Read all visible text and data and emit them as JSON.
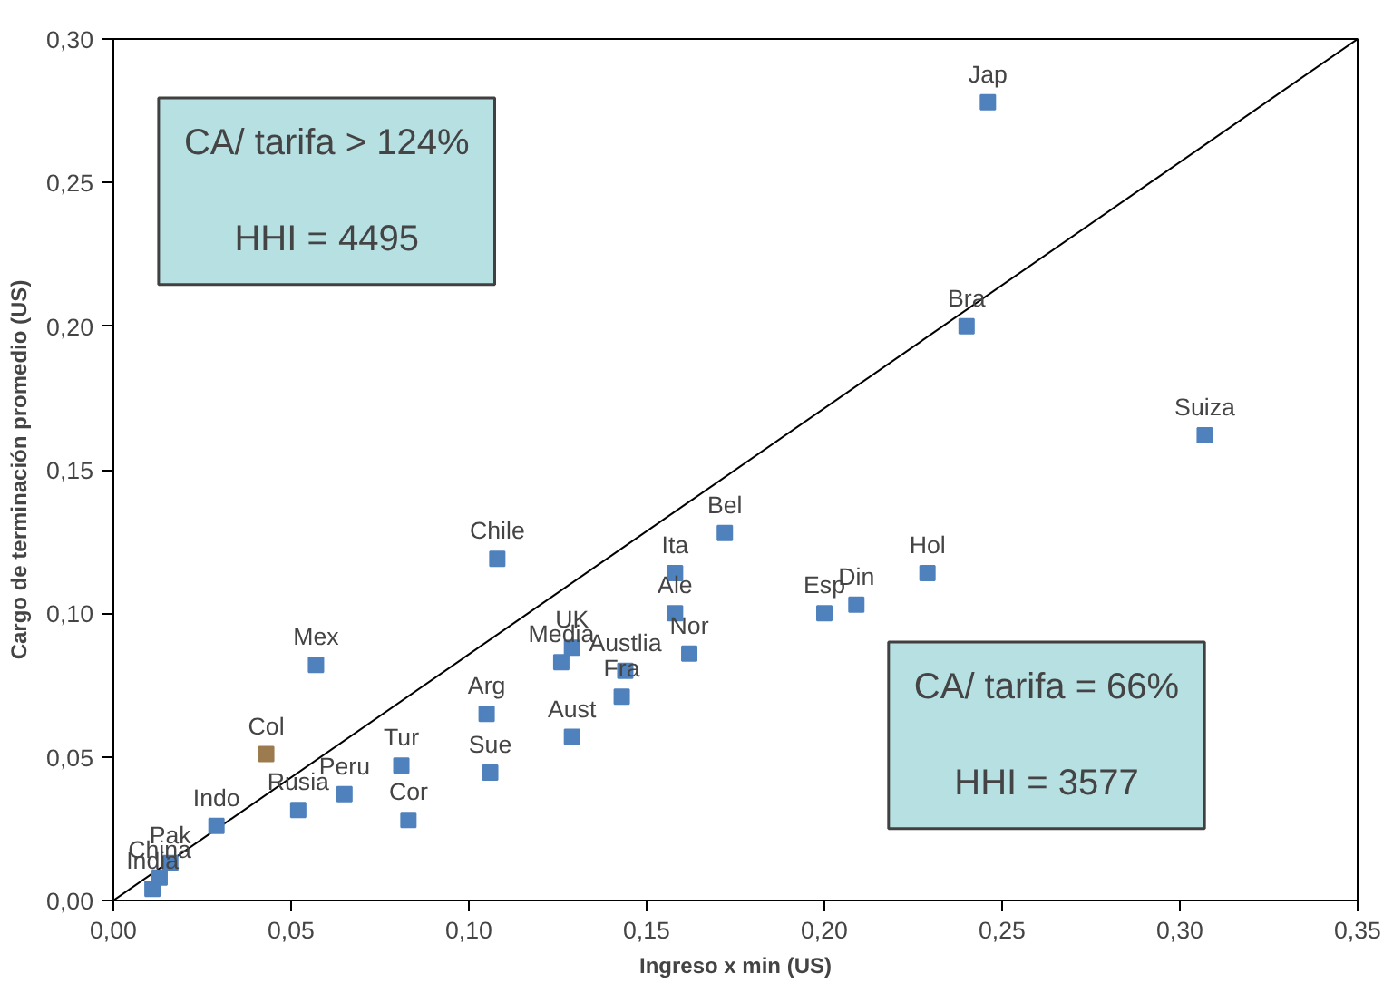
{
  "chart_data": {
    "type": "scatter",
    "xlabel": "Ingreso x min (US)",
    "ylabel": "Cargo de terminación promedio (US)",
    "xlim": [
      0,
      0.35
    ],
    "ylim": [
      0,
      0.3
    ],
    "xticks": [
      {
        "value": 0,
        "label": "0,00"
      },
      {
        "value": 0.05,
        "label": "0,05"
      },
      {
        "value": 0.1,
        "label": "0,10"
      },
      {
        "value": 0.15,
        "label": "0,15"
      },
      {
        "value": 0.2,
        "label": "0,20"
      },
      {
        "value": 0.25,
        "label": "0,25"
      },
      {
        "value": 0.3,
        "label": "0,30"
      },
      {
        "value": 0.35,
        "label": "0,35"
      }
    ],
    "yticks": [
      {
        "value": 0,
        "label": "0,00"
      },
      {
        "value": 0.05,
        "label": "0,05"
      },
      {
        "value": 0.1,
        "label": "0,10"
      },
      {
        "value": 0.15,
        "label": "0,15"
      },
      {
        "value": 0.2,
        "label": "0,20"
      },
      {
        "value": 0.25,
        "label": "0,25"
      },
      {
        "value": 0.3,
        "label": "0,30"
      }
    ],
    "grid": false,
    "marker": "square",
    "series": [
      {
        "x": [
          0.246,
          0.24,
          0.307,
          0.229,
          0.209,
          0.2,
          0.172,
          0.158,
          0.158,
          0.162,
          0.144,
          0.143,
          0.129,
          0.129,
          0.126,
          0.108,
          0.057,
          0.043,
          0.105,
          0.106,
          0.081,
          0.083,
          0.065,
          0.052,
          0.029,
          0.016,
          0.013,
          0.011
        ],
        "values": [
          0.278,
          0.2,
          0.162,
          0.114,
          0.103,
          0.1,
          0.128,
          0.114,
          0.1,
          0.086,
          0.08,
          0.071,
          0.057,
          0.088,
          0.083,
          0.119,
          0.082,
          0.051,
          0.065,
          0.0445,
          0.047,
          0.028,
          0.037,
          0.0315,
          0.026,
          0.013,
          0.008,
          0.004
        ],
        "colors": [
          "#4f81bd",
          "#4f81bd",
          "#4f81bd",
          "#4f81bd",
          "#4f81bd",
          "#4f81bd",
          "#4f81bd",
          "#4f81bd",
          "#4f81bd",
          "#4f81bd",
          "#4f81bd",
          "#4f81bd",
          "#4f81bd",
          "#4f81bd",
          "#4f81bd",
          "#4f81bd",
          "#4f81bd",
          "#9c7b4f",
          "#4f81bd",
          "#4f81bd",
          "#4f81bd",
          "#4f81bd",
          "#4f81bd",
          "#4f81bd",
          "#4f81bd",
          "#4f81bd",
          "#4f81bd",
          "#4f81bd"
        ]
      },
      {
        "type": "line",
        "marker": "none",
        "color": "#000000",
        "x": [
          0,
          0.35
        ],
        "values": [
          0,
          0.3
        ]
      }
    ],
    "annotations": [
      "CA/ tarifa > 124%",
      "HHI = 4495",
      "CA/ tarifa = 66%",
      "HHI = 3577",
      {
        "text": "Jap",
        "x": 0.246,
        "y": 0.278
      },
      {
        "text": "Bra",
        "x": 0.24,
        "y": 0.2
      },
      {
        "text": "Suiza",
        "x": 0.307,
        "y": 0.162
      },
      {
        "text": "Hol",
        "x": 0.229,
        "y": 0.114
      },
      {
        "text": "Din",
        "x": 0.209,
        "y": 0.103
      },
      {
        "text": "Esp",
        "x": 0.2,
        "y": 0.1
      },
      {
        "text": "Bel",
        "x": 0.172,
        "y": 0.128
      },
      {
        "text": "Ita",
        "x": 0.158,
        "y": 0.114
      },
      {
        "text": "Ale",
        "x": 0.158,
        "y": 0.1
      },
      {
        "text": "Nor",
        "x": 0.162,
        "y": 0.086
      },
      {
        "text": "Austlia",
        "x": 0.144,
        "y": 0.08
      },
      {
        "text": "Fra",
        "x": 0.143,
        "y": 0.071
      },
      {
        "text": "Aust",
        "x": 0.129,
        "y": 0.057
      },
      {
        "text": "UK",
        "x": 0.129,
        "y": 0.088
      },
      {
        "text": "Media",
        "x": 0.126,
        "y": 0.083
      },
      {
        "text": "Chile",
        "x": 0.108,
        "y": 0.119
      },
      {
        "text": "Mex",
        "x": 0.057,
        "y": 0.082
      },
      {
        "text": "Col",
        "x": 0.043,
        "y": 0.051
      },
      {
        "text": "Arg",
        "x": 0.105,
        "y": 0.065
      },
      {
        "text": "Sue",
        "x": 0.106,
        "y": 0.0445
      },
      {
        "text": "Tur",
        "x": 0.081,
        "y": 0.047
      },
      {
        "text": "Cor",
        "x": 0.083,
        "y": 0.028
      },
      {
        "text": "Peru",
        "x": 0.065,
        "y": 0.037
      },
      {
        "text": "Rusia",
        "x": 0.052,
        "y": 0.0315
      },
      {
        "text": "Indo",
        "x": 0.029,
        "y": 0.026
      },
      {
        "text": "Pak",
        "x": 0.016,
        "y": 0.013
      },
      {
        "text": "China",
        "x": 0.013,
        "y": 0.008
      },
      {
        "text": "India",
        "x": 0.011,
        "y": 0.004
      }
    ]
  }
}
